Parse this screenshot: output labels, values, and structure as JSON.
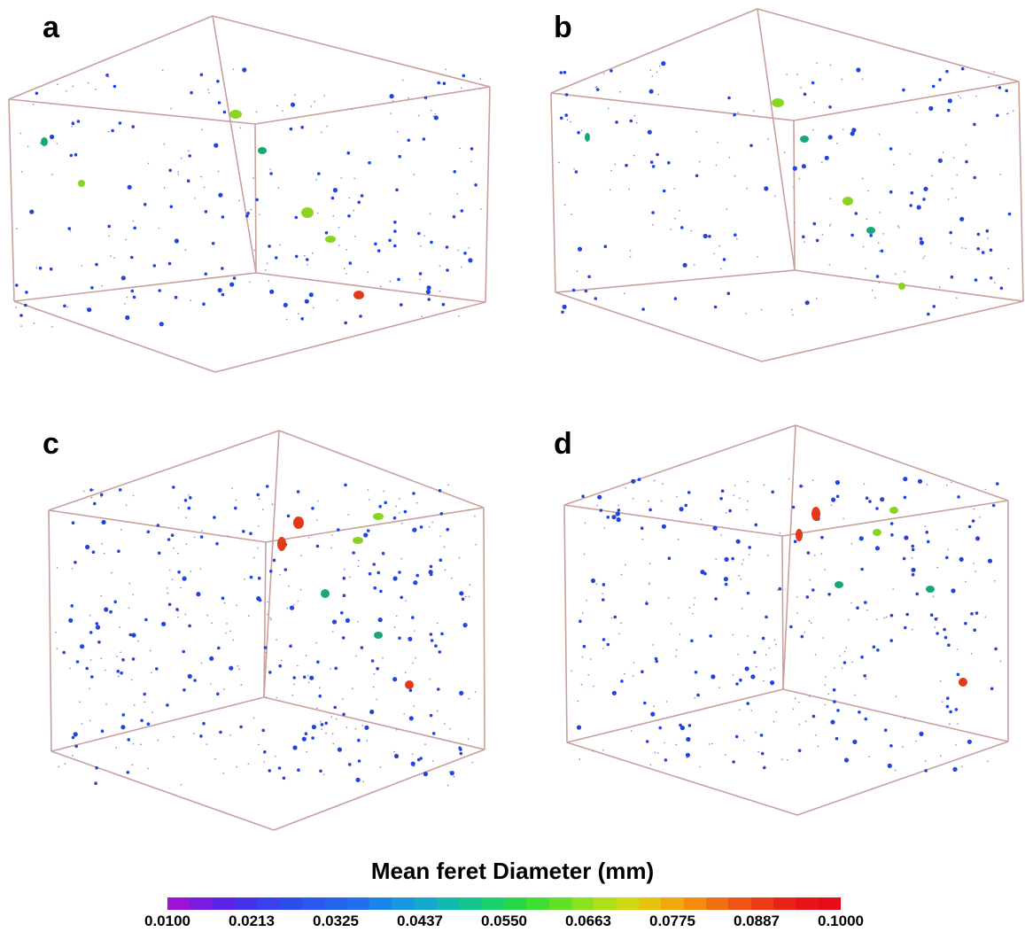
{
  "panels": [
    {
      "label": "a"
    },
    {
      "label": "b"
    },
    {
      "label": "c"
    },
    {
      "label": "d"
    }
  ],
  "colorbar": {
    "title": "Mean feret Diameter (mm)",
    "ticks": [
      "0.0100",
      "0.0213",
      "0.0325",
      "0.0437",
      "0.0550",
      "0.0663",
      "0.0775",
      "0.0887",
      "0.1000"
    ],
    "colors": [
      "#9b14d6",
      "#7a1be0",
      "#5e24e6",
      "#4631ea",
      "#3a40ec",
      "#2e4ded",
      "#2a58ee",
      "#2463ee",
      "#2070ee",
      "#1a86ea",
      "#1898e0",
      "#14a8cc",
      "#12b8b0",
      "#14c68e",
      "#1ad06a",
      "#26d848",
      "#3ede32",
      "#62e026",
      "#88e21e",
      "#aee018",
      "#cfd812",
      "#e6c40e",
      "#f2a80c",
      "#f48c0c",
      "#f27010",
      "#ee5414",
      "#ea3a16",
      "#e82418",
      "#e8141a",
      "#e80c1a"
    ],
    "box_edge_color": "#c9a09a",
    "particle_colors": {
      "small": "#2244dd",
      "medium": "#18a878",
      "large": "#88d420",
      "largest": "#e23a18"
    }
  }
}
